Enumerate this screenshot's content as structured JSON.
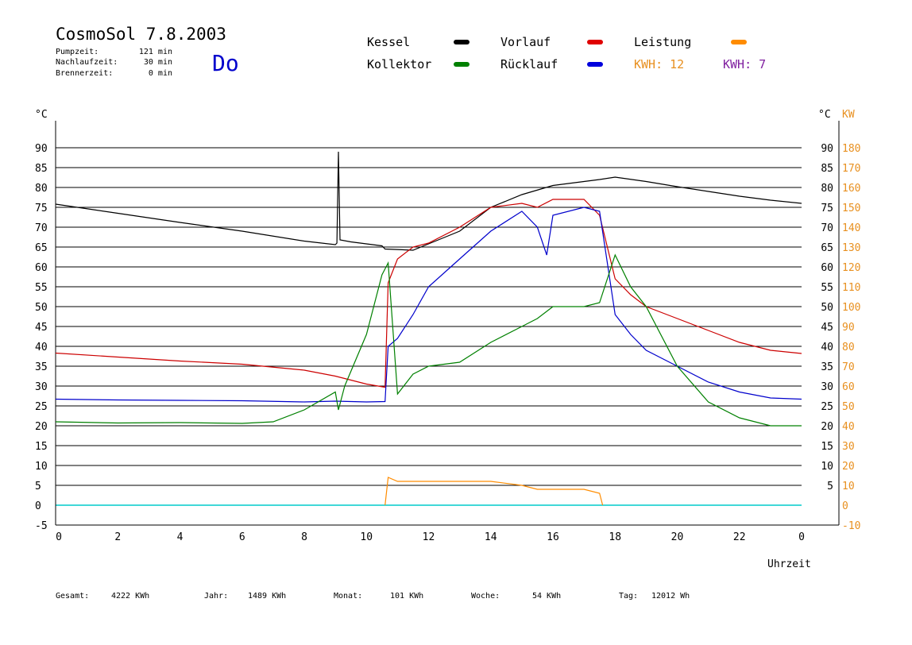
{
  "header": {
    "title": "CosmoSol 7.8.2003",
    "day": "Do",
    "stats": [
      {
        "label": "Pumpzeit:",
        "value": "121 min"
      },
      {
        "label": "Nachlaufzeit:",
        "value": "30 min"
      },
      {
        "label": "Brennerzeit:",
        "value": "0 min"
      }
    ]
  },
  "legend": {
    "kessel": {
      "label": "Kessel",
      "color": "#000000"
    },
    "kollektor": {
      "label": "Kollektor",
      "color": "#008000"
    },
    "vorlauf": {
      "label": "Vorlauf",
      "color": "#e00000"
    },
    "ruecklauf": {
      "label": "Rücklauf",
      "color": "#0000dd"
    },
    "leistung": {
      "label": "Leistung",
      "color": "#ff8c00"
    },
    "kwh1": {
      "label": "KWH: 12",
      "color": "#e89020"
    },
    "kwh2": {
      "label": "KWH: 7",
      "color": "#8020a0"
    }
  },
  "footer": [
    {
      "label": "Gesamt:",
      "value": "4222 KWh"
    },
    {
      "label": "Jahr:",
      "value": "1489 KWh"
    },
    {
      "label": "Monat:",
      "value": "101 KWh"
    },
    {
      "label": "Woche:",
      "value": "54 KWh"
    },
    {
      "label": "Tag:",
      "value": "12012 Wh"
    }
  ],
  "chart_data": {
    "type": "line",
    "xlabel": "Uhrzeit",
    "ylabel_left": "°C",
    "ylabel_right_temp": "°C",
    "ylabel_right_power": "KW",
    "xlim": [
      0,
      24
    ],
    "ylim": [
      -5,
      95
    ],
    "ylim_power": [
      -10,
      190
    ],
    "x_ticks": [
      "0",
      "2",
      "4",
      "6",
      "8",
      "10",
      "12",
      "14",
      "16",
      "18",
      "20",
      "22",
      "0"
    ],
    "y_ticks": [
      "-5",
      "0",
      "5",
      "10",
      "15",
      "20",
      "25",
      "30",
      "35",
      "40",
      "45",
      "50",
      "55",
      "60",
      "65",
      "70",
      "75",
      "80",
      "85",
      "90"
    ],
    "y_ticks_right_temp": [
      "5",
      "10",
      "15",
      "20",
      "25",
      "30",
      "35",
      "40",
      "45",
      "50",
      "55",
      "60",
      "65",
      "70",
      "75",
      "80",
      "85",
      "90"
    ],
    "y_ticks_power": [
      "-10",
      "0",
      "10",
      "20",
      "30",
      "40",
      "50",
      "60",
      "70",
      "80",
      "90",
      "100",
      "110",
      "120",
      "130",
      "140",
      "150",
      "160",
      "170",
      "180"
    ],
    "grid": true,
    "baseline": {
      "value": 0,
      "color": "#00cccc"
    },
    "series": [
      {
        "name": "Kessel",
        "color": "#000000",
        "points": [
          [
            0,
            75.8
          ],
          [
            2,
            73.5
          ],
          [
            4,
            71.2
          ],
          [
            6,
            69
          ],
          [
            8,
            66.5
          ],
          [
            9,
            65.6
          ],
          [
            9.05,
            66
          ],
          [
            9.1,
            89
          ],
          [
            9.15,
            66.8
          ],
          [
            9.5,
            66.3
          ],
          [
            10,
            65.8
          ],
          [
            10.5,
            65.3
          ],
          [
            10.6,
            64.5
          ],
          [
            11.5,
            64.2
          ],
          [
            12,
            65.8
          ],
          [
            13,
            69
          ],
          [
            14,
            75
          ],
          [
            15,
            78.2
          ],
          [
            16,
            80.5
          ],
          [
            17,
            81.5
          ],
          [
            17.5,
            82
          ],
          [
            18,
            82.6
          ],
          [
            19,
            81.5
          ],
          [
            20,
            80.2
          ],
          [
            21,
            79
          ],
          [
            22,
            77.8
          ],
          [
            23,
            76.8
          ],
          [
            24,
            76
          ]
        ]
      },
      {
        "name": "Vorlauf",
        "color": "#cc0000",
        "points": [
          [
            0,
            38.3
          ],
          [
            2,
            37.3
          ],
          [
            4,
            36.3
          ],
          [
            6,
            35.5
          ],
          [
            8,
            34
          ],
          [
            9,
            32.5
          ],
          [
            10,
            30.5
          ],
          [
            10.6,
            29.7
          ],
          [
            10.7,
            56
          ],
          [
            11,
            62
          ],
          [
            11.5,
            65
          ],
          [
            12,
            66
          ],
          [
            13,
            70
          ],
          [
            14,
            75
          ],
          [
            15,
            76
          ],
          [
            15.5,
            75
          ],
          [
            16,
            77
          ],
          [
            17,
            77
          ],
          [
            17.5,
            73
          ],
          [
            18,
            57
          ],
          [
            18.5,
            53
          ],
          [
            19,
            50
          ],
          [
            20,
            47
          ],
          [
            21,
            44
          ],
          [
            22,
            41
          ],
          [
            23,
            39
          ],
          [
            24,
            38.2
          ]
        ]
      },
      {
        "name": "Rücklauf",
        "color": "#0000cc",
        "points": [
          [
            0,
            26.7
          ],
          [
            2,
            26.5
          ],
          [
            4,
            26.4
          ],
          [
            6,
            26.3
          ],
          [
            8,
            26
          ],
          [
            9,
            26.2
          ],
          [
            10,
            26
          ],
          [
            10.6,
            26.1
          ],
          [
            10.7,
            40
          ],
          [
            11,
            42
          ],
          [
            11.5,
            48
          ],
          [
            12,
            55
          ],
          [
            13,
            62
          ],
          [
            14,
            69
          ],
          [
            15,
            74
          ],
          [
            15.5,
            70
          ],
          [
            15.8,
            63
          ],
          [
            16,
            73
          ],
          [
            17,
            75
          ],
          [
            17.5,
            74
          ],
          [
            18,
            48
          ],
          [
            18.5,
            43
          ],
          [
            19,
            39
          ],
          [
            20,
            35
          ],
          [
            21,
            31
          ],
          [
            22,
            28.5
          ],
          [
            23,
            27
          ],
          [
            24,
            26.7
          ]
        ]
      },
      {
        "name": "Kollektor",
        "color": "#008000",
        "points": [
          [
            0,
            21
          ],
          [
            2,
            20.7
          ],
          [
            4,
            20.8
          ],
          [
            6,
            20.6
          ],
          [
            7,
            21
          ],
          [
            8,
            24
          ],
          [
            9,
            28.5
          ],
          [
            9.1,
            24
          ],
          [
            9.3,
            30
          ],
          [
            10,
            43
          ],
          [
            10.5,
            58
          ],
          [
            10.7,
            61
          ],
          [
            11,
            28
          ],
          [
            11.5,
            33
          ],
          [
            12,
            35
          ],
          [
            13,
            36
          ],
          [
            14,
            41
          ],
          [
            15,
            45
          ],
          [
            15.5,
            47
          ],
          [
            16,
            50
          ],
          [
            17,
            50
          ],
          [
            17.5,
            51
          ],
          [
            18,
            63
          ],
          [
            18.5,
            55
          ],
          [
            19,
            50
          ],
          [
            20,
            35
          ],
          [
            21,
            26
          ],
          [
            22,
            22
          ],
          [
            23,
            20
          ],
          [
            24,
            20
          ]
        ]
      },
      {
        "name": "Leistung",
        "color": "#ff8c00",
        "points": [
          [
            10.6,
            0
          ],
          [
            10.7,
            7
          ],
          [
            11,
            6
          ],
          [
            12,
            6
          ],
          [
            13,
            6
          ],
          [
            14,
            6
          ],
          [
            15,
            5
          ],
          [
            15.5,
            4
          ],
          [
            16,
            4
          ],
          [
            17,
            4
          ],
          [
            17.5,
            3
          ],
          [
            17.6,
            0
          ]
        ]
      }
    ],
    "annotations": [
      "KWH: 12",
      "KWH: 7"
    ]
  }
}
